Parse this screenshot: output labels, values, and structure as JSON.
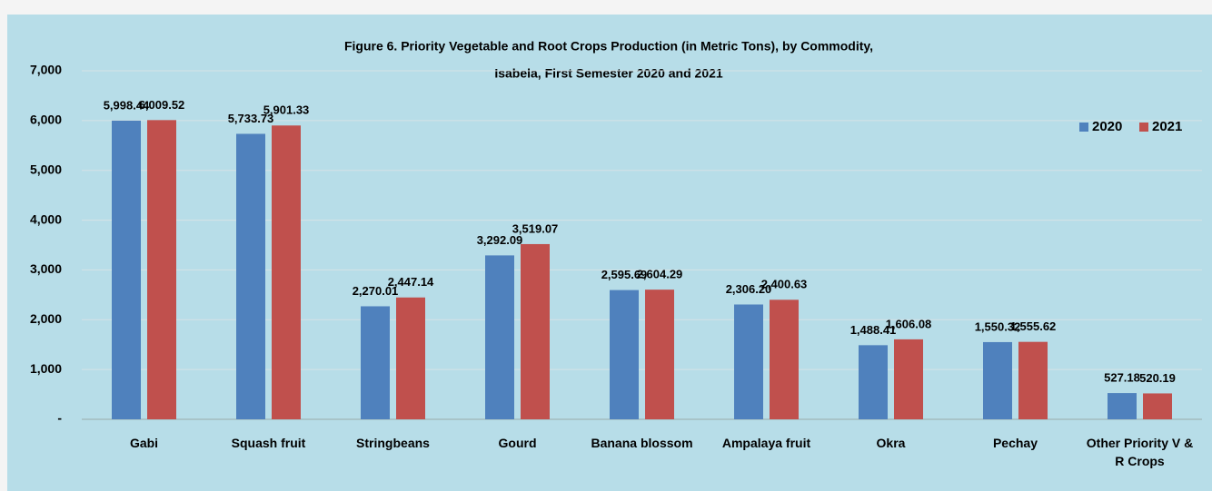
{
  "chart_data": {
    "type": "bar",
    "title": [
      "Figure 6. Priority Vegetable and Root Crops Production (in Metric Tons), by Commodity,",
      "Isabela, First Semester 2020 and 2021"
    ],
    "categories": [
      "Gabi",
      "Squash fruit",
      "Stringbeans",
      "Gourd",
      "Banana blossom",
      "Ampalaya fruit",
      "Okra",
      "Pechay",
      "Other Priority V & R Crops"
    ],
    "series": [
      {
        "name": "2020",
        "color": "#4f81bd",
        "values": [
          5998.44,
          5733.73,
          2270.01,
          3292.09,
          2595.69,
          2306.2,
          1488.41,
          1550.32,
          527.18
        ],
        "value_labels": [
          "5,998.44",
          "5,733.73",
          "2,270.01",
          "3,292.09",
          "2,595.69",
          "2,306.20",
          "1,488.41",
          "1,550.32",
          "527.18"
        ]
      },
      {
        "name": "2021",
        "color": "#c0504d",
        "values": [
          6009.52,
          5901.33,
          2447.14,
          3519.07,
          2604.29,
          2400.63,
          1606.08,
          1555.62,
          520.19
        ],
        "value_labels": [
          "6,009.52",
          "5,901.33",
          "2,447.14",
          "3,519.07",
          "2,604.29",
          "2,400.63",
          "1,606.08",
          "1,555.62",
          "520.19"
        ]
      }
    ],
    "ylim": [
      0,
      7000
    ],
    "yticks": [
      {
        "value": 0,
        "label": "-"
      },
      {
        "value": 1000,
        "label": "1,000"
      },
      {
        "value": 2000,
        "label": "2,000"
      },
      {
        "value": 3000,
        "label": "3,000"
      },
      {
        "value": 4000,
        "label": "4,000"
      },
      {
        "value": 5000,
        "label": "5,000"
      },
      {
        "value": 6000,
        "label": "6,000"
      },
      {
        "value": 7000,
        "label": "7,000"
      }
    ],
    "grid": true,
    "legend": "top-right"
  }
}
